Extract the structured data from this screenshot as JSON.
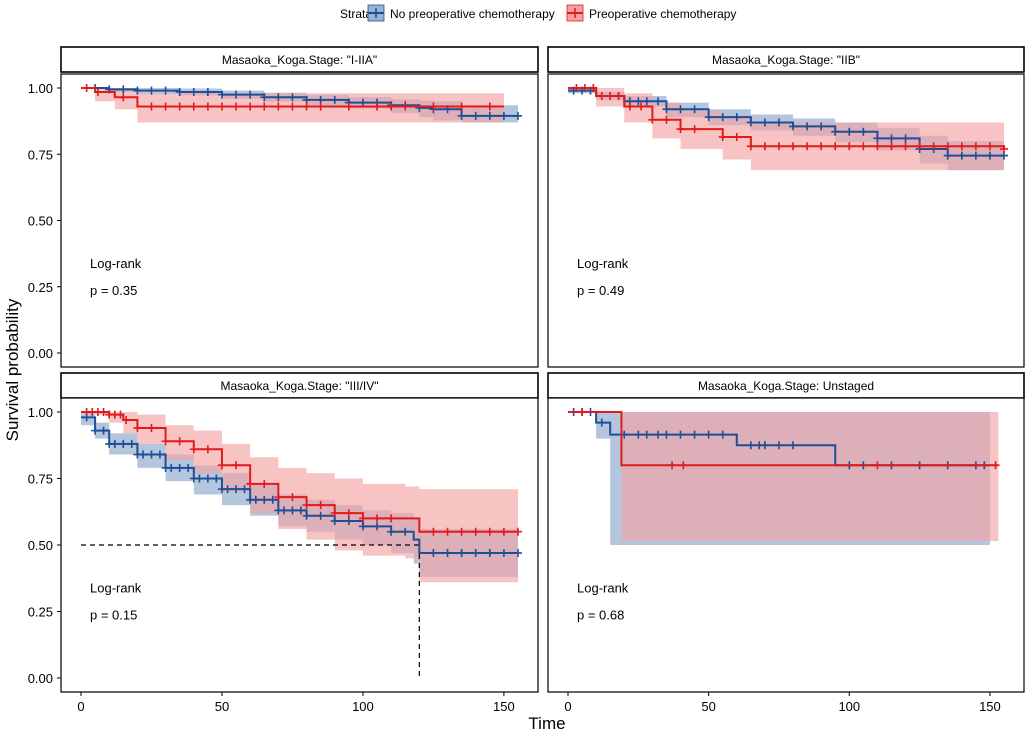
{
  "legend": {
    "title": "Strata",
    "items": [
      {
        "label": "No preoperative chemotherapy",
        "color": "#1f4e96",
        "band": "#9ab3d3"
      },
      {
        "label": "Preoperative chemotherapy",
        "color": "#e31a1c",
        "band": "#f4a3a3"
      }
    ]
  },
  "axis": {
    "xlabel": "Time",
    "ylabel": "Survival probability",
    "x_ticks": [
      "0",
      "50",
      "100",
      "150"
    ],
    "y_ticks": [
      "0.00",
      "0.25",
      "0.50",
      "0.75",
      "1.00"
    ]
  },
  "chart_data": [
    {
      "type": "line",
      "subtype": "kaplan-meier",
      "title": "Masaoka_Koga.Stage: \"I-IIA\"",
      "xlim": [
        0,
        155
      ],
      "ylim": [
        0,
        1
      ],
      "logrank_label": "Log-rank",
      "p_value": "p = 0.35",
      "series": [
        {
          "name": "No preoperative chemotherapy",
          "x": [
            0,
            10,
            20,
            35,
            50,
            65,
            80,
            95,
            110,
            120,
            125,
            135,
            155
          ],
          "y": [
            1.0,
            0.995,
            0.99,
            0.985,
            0.975,
            0.965,
            0.955,
            0.945,
            0.935,
            0.925,
            0.92,
            0.895,
            0.895
          ],
          "lower": [
            1.0,
            0.985,
            0.978,
            0.972,
            0.96,
            0.948,
            0.935,
            0.922,
            0.905,
            0.89,
            0.878,
            0.87,
            0.87
          ],
          "upper": [
            1.0,
            1.0,
            1.0,
            0.998,
            0.99,
            0.982,
            0.974,
            0.966,
            0.958,
            0.952,
            0.95,
            0.935,
            0.935
          ],
          "censor_x": [
            5,
            10,
            15,
            20,
            25,
            30,
            35,
            40,
            45,
            50,
            55,
            60,
            65,
            70,
            75,
            80,
            85,
            90,
            95,
            100,
            105,
            110,
            115,
            120,
            125,
            130,
            135,
            140,
            145,
            150,
            155
          ]
        },
        {
          "name": "Preoperative chemotherapy",
          "x": [
            0,
            5,
            12,
            20,
            150
          ],
          "y": [
            1.0,
            0.985,
            0.965,
            0.93,
            0.93
          ],
          "lower": [
            1.0,
            0.95,
            0.92,
            0.87,
            0.87
          ],
          "upper": [
            1.0,
            1.0,
            0.995,
            0.98,
            0.98
          ],
          "censor_x": [
            2,
            6,
            15,
            25,
            30,
            35,
            40,
            45,
            50,
            55,
            60,
            65,
            70,
            75,
            80,
            85,
            95,
            105,
            110,
            115,
            125,
            135,
            145
          ]
        }
      ]
    },
    {
      "type": "line",
      "subtype": "kaplan-meier",
      "title": "Masaoka_Koga.Stage: \"IIB\"",
      "xlim": [
        0,
        155
      ],
      "ylim": [
        0,
        1
      ],
      "logrank_label": "Log-rank",
      "p_value": "p = 0.49",
      "series": [
        {
          "name": "No preoperative chemotherapy",
          "x": [
            0,
            10,
            20,
            35,
            50,
            65,
            80,
            95,
            110,
            125,
            135,
            155
          ],
          "y": [
            0.99,
            0.97,
            0.95,
            0.92,
            0.89,
            0.87,
            0.855,
            0.835,
            0.81,
            0.77,
            0.745,
            0.745
          ],
          "lower": [
            0.98,
            0.955,
            0.93,
            0.89,
            0.86,
            0.84,
            0.82,
            0.795,
            0.765,
            0.715,
            0.69,
            0.69
          ],
          "upper": [
            1.0,
            0.985,
            0.97,
            0.945,
            0.92,
            0.9,
            0.885,
            0.87,
            0.85,
            0.82,
            0.8,
            0.8
          ],
          "censor_x": [
            2,
            5,
            8,
            12,
            15,
            18,
            22,
            25,
            28,
            32,
            35,
            40,
            45,
            50,
            55,
            60,
            65,
            70,
            75,
            80,
            85,
            90,
            95,
            100,
            105,
            110,
            115,
            120,
            125,
            130,
            135,
            140,
            145,
            150,
            155
          ]
        },
        {
          "name": "Preoperative chemotherapy",
          "x": [
            0,
            10,
            20,
            30,
            40,
            55,
            65,
            155
          ],
          "y": [
            1.0,
            0.97,
            0.93,
            0.88,
            0.845,
            0.815,
            0.78,
            0.77
          ],
          "lower": [
            1.0,
            0.93,
            0.87,
            0.81,
            0.77,
            0.73,
            0.69,
            0.69
          ],
          "upper": [
            1.0,
            1.0,
            0.98,
            0.945,
            0.915,
            0.895,
            0.87,
            0.87
          ],
          "censor_x": [
            3,
            6,
            9,
            12,
            15,
            18,
            22,
            26,
            30,
            35,
            40,
            45,
            55,
            60,
            65,
            70,
            75,
            80,
            85,
            90,
            95,
            100,
            105,
            110,
            115,
            120,
            125,
            130,
            135,
            140,
            145,
            150,
            155
          ]
        }
      ]
    },
    {
      "type": "line",
      "subtype": "kaplan-meier",
      "title": "Masaoka_Koga.Stage: \"III/IV\"",
      "xlim": [
        0,
        155
      ],
      "ylim": [
        0,
        1
      ],
      "logrank_label": "Log-rank",
      "p_value": "p = 0.15",
      "median_line": {
        "y": 0.5,
        "x": 120
      },
      "series": [
        {
          "name": "No preoperative chemotherapy",
          "x": [
            0,
            5,
            10,
            20,
            30,
            40,
            50,
            60,
            70,
            80,
            90,
            100,
            110,
            118,
            120,
            155
          ],
          "y": [
            0.98,
            0.93,
            0.88,
            0.84,
            0.79,
            0.75,
            0.71,
            0.67,
            0.63,
            0.61,
            0.59,
            0.57,
            0.55,
            0.52,
            0.47,
            0.47
          ],
          "lower": [
            0.95,
            0.9,
            0.84,
            0.79,
            0.74,
            0.69,
            0.65,
            0.61,
            0.57,
            0.55,
            0.52,
            0.5,
            0.47,
            0.43,
            0.38,
            0.38
          ],
          "upper": [
            1.0,
            0.96,
            0.92,
            0.88,
            0.84,
            0.8,
            0.77,
            0.73,
            0.69,
            0.67,
            0.65,
            0.63,
            0.62,
            0.6,
            0.56,
            0.56
          ],
          "censor_x": [
            2,
            5,
            8,
            10,
            12,
            15,
            18,
            20,
            22,
            25,
            28,
            30,
            32,
            35,
            38,
            40,
            42,
            45,
            48,
            50,
            52,
            55,
            58,
            60,
            62,
            65,
            68,
            70,
            72,
            75,
            78,
            80,
            85,
            90,
            95,
            100,
            105,
            110,
            115,
            125,
            130,
            135,
            140,
            145,
            150,
            155
          ]
        },
        {
          "name": "Preoperative chemotherapy",
          "x": [
            0,
            5,
            10,
            15,
            20,
            30,
            40,
            50,
            60,
            70,
            80,
            90,
            100,
            115,
            120,
            155
          ],
          "y": [
            1.0,
            1.0,
            0.99,
            0.97,
            0.94,
            0.89,
            0.86,
            0.8,
            0.73,
            0.68,
            0.65,
            0.62,
            0.6,
            0.6,
            0.55,
            0.55
          ],
          "lower": [
            1.0,
            0.99,
            0.96,
            0.92,
            0.88,
            0.82,
            0.77,
            0.7,
            0.62,
            0.56,
            0.52,
            0.48,
            0.46,
            0.45,
            0.36,
            0.36
          ],
          "upper": [
            1.0,
            1.0,
            1.0,
            1.0,
            0.99,
            0.95,
            0.93,
            0.88,
            0.83,
            0.79,
            0.77,
            0.75,
            0.73,
            0.72,
            0.71,
            0.71
          ],
          "censor_x": [
            2,
            4,
            6,
            8,
            10,
            12,
            14,
            16,
            20,
            25,
            30,
            35,
            40,
            45,
            50,
            55,
            60,
            65,
            70,
            75,
            80,
            85,
            90,
            95,
            100,
            105,
            110,
            125,
            130,
            135,
            140,
            145,
            150,
            155
          ]
        }
      ]
    },
    {
      "type": "line",
      "subtype": "kaplan-meier",
      "title": "Masaoka_Koga.Stage: Unstaged",
      "xlim": [
        0,
        155
      ],
      "ylim": [
        0,
        1
      ],
      "logrank_label": "Log-rank",
      "p_value": "p = 0.68",
      "series": [
        {
          "name": "No preoperative chemotherapy",
          "x": [
            0,
            10,
            15,
            60,
            95,
            150
          ],
          "y": [
            1.0,
            0.96,
            0.915,
            0.875,
            0.8,
            0.8
          ],
          "lower": [
            1.0,
            0.9,
            0.5,
            0.5,
            0.5,
            0.5
          ],
          "upper": [
            1.0,
            1.0,
            1.0,
            1.0,
            1.0,
            1.0
          ],
          "censor_x": [
            2,
            5,
            8,
            12,
            20,
            25,
            28,
            32,
            35,
            40,
            45,
            50,
            55,
            65,
            68,
            70,
            75,
            80,
            100,
            105,
            115,
            125,
            135,
            145,
            148
          ]
        },
        {
          "name": "Preoperative chemotherapy",
          "x": [
            0,
            19,
            153
          ],
          "y": [
            1.0,
            0.8,
            0.8
          ],
          "lower": [
            1.0,
            0.515,
            0.515
          ],
          "upper": [
            1.0,
            1.0,
            1.0
          ],
          "censor_x": [
            5,
            37,
            41,
            110,
            152
          ]
        }
      ]
    }
  ]
}
